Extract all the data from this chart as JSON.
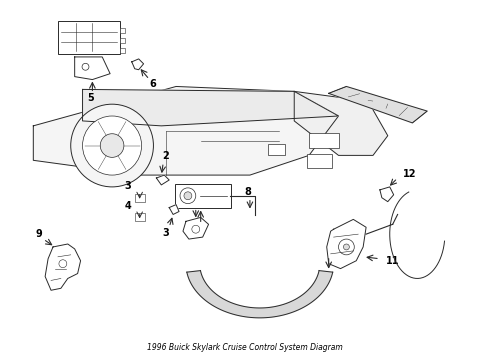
{
  "title": "1996 Buick Skylark Cruise Control System Diagram",
  "bg_color": "#ffffff",
  "line_color": "#2a2a2a",
  "text_color": "#000000",
  "figsize": [
    4.9,
    3.6
  ],
  "dpi": 100
}
